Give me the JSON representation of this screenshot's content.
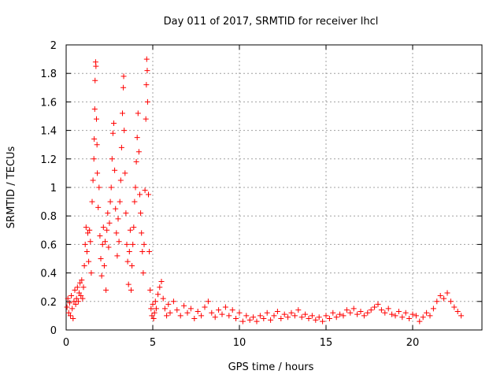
{
  "chart_data": {
    "type": "scatter",
    "title": "Day 011 of 2017, SRMTID for receiver lhcl",
    "xlabel": "GPS time / hours",
    "ylabel": "SRMTID / TECUs",
    "xlim": [
      0,
      24
    ],
    "ylim": [
      0,
      2
    ],
    "xticks": [
      0,
      5,
      10,
      15,
      20
    ],
    "xtick_labels": [
      "0",
      "5",
      "10",
      "15",
      "20"
    ],
    "yticks": [
      0,
      0.2,
      0.4,
      0.6,
      0.8,
      1,
      1.2,
      1.4,
      1.6,
      1.8,
      2
    ],
    "ytick_labels": [
      "0",
      "0.2",
      "0.4",
      "0.6",
      "0.8",
      "1",
      "1.2",
      "1.4",
      "1.6",
      "1.8",
      "2"
    ],
    "grid": true,
    "marker": "plus",
    "series": [
      {
        "name": "SRMTID",
        "color": "#ff0000",
        "points": [
          [
            0.05,
            0.16
          ],
          [
            0.1,
            0.22
          ],
          [
            0.15,
            0.12
          ],
          [
            0.2,
            0.19
          ],
          [
            0.25,
            0.1
          ],
          [
            0.3,
            0.24
          ],
          [
            0.35,
            0.15
          ],
          [
            0.4,
            0.08
          ],
          [
            0.45,
            0.2
          ],
          [
            0.5,
            0.28
          ],
          [
            0.55,
            0.18
          ],
          [
            0.6,
            0.22
          ],
          [
            0.65,
            0.3
          ],
          [
            0.7,
            0.2
          ],
          [
            0.75,
            0.26
          ],
          [
            0.8,
            0.33
          ],
          [
            0.85,
            0.24
          ],
          [
            0.9,
            0.35
          ],
          [
            0.95,
            0.22
          ],
          [
            1.0,
            0.3
          ],
          [
            1.05,
            0.45
          ],
          [
            1.1,
            0.6
          ],
          [
            1.15,
            0.72
          ],
          [
            1.2,
            0.55
          ],
          [
            1.25,
            0.68
          ],
          [
            1.3,
            0.48
          ],
          [
            1.35,
            0.7
          ],
          [
            1.4,
            0.62
          ],
          [
            1.45,
            0.4
          ],
          [
            1.5,
            0.9
          ],
          [
            1.55,
            1.05
          ],
          [
            1.6,
            1.2
          ],
          [
            1.62,
            1.34
          ],
          [
            1.65,
            1.55
          ],
          [
            1.67,
            1.75
          ],
          [
            1.7,
            1.88
          ],
          [
            1.72,
            1.85
          ],
          [
            1.75,
            1.48
          ],
          [
            1.78,
            1.3
          ],
          [
            1.8,
            1.1
          ],
          [
            1.85,
            0.86
          ],
          [
            1.9,
            1.0
          ],
          [
            1.95,
            0.66
          ],
          [
            2.0,
            0.5
          ],
          [
            2.05,
            0.38
          ],
          [
            2.1,
            0.6
          ],
          [
            2.15,
            0.72
          ],
          [
            2.2,
            0.45
          ],
          [
            2.25,
            0.62
          ],
          [
            2.3,
            0.28
          ],
          [
            2.35,
            0.7
          ],
          [
            2.4,
            0.82
          ],
          [
            2.45,
            0.58
          ],
          [
            2.5,
            0.75
          ],
          [
            2.55,
            0.9
          ],
          [
            2.6,
            1.0
          ],
          [
            2.65,
            1.2
          ],
          [
            2.7,
            1.38
          ],
          [
            2.75,
            1.45
          ],
          [
            2.8,
            1.12
          ],
          [
            2.85,
            0.85
          ],
          [
            2.9,
            0.68
          ],
          [
            2.95,
            0.52
          ],
          [
            3.0,
            0.78
          ],
          [
            3.05,
            0.62
          ],
          [
            3.1,
            0.9
          ],
          [
            3.15,
            1.05
          ],
          [
            3.2,
            1.28
          ],
          [
            3.25,
            1.52
          ],
          [
            3.3,
            1.7
          ],
          [
            3.32,
            1.78
          ],
          [
            3.35,
            1.4
          ],
          [
            3.4,
            1.1
          ],
          [
            3.45,
            0.82
          ],
          [
            3.5,
            0.6
          ],
          [
            3.55,
            0.48
          ],
          [
            3.6,
            0.32
          ],
          [
            3.65,
            0.55
          ],
          [
            3.7,
            0.7
          ],
          [
            3.75,
            0.28
          ],
          [
            3.8,
            0.45
          ],
          [
            3.85,
            0.6
          ],
          [
            3.9,
            0.72
          ],
          [
            3.95,
            0.9
          ],
          [
            4.0,
            1.0
          ],
          [
            4.05,
            1.18
          ],
          [
            4.1,
            1.35
          ],
          [
            4.15,
            1.52
          ],
          [
            4.2,
            1.25
          ],
          [
            4.25,
            0.95
          ],
          [
            4.3,
            0.82
          ],
          [
            4.35,
            0.68
          ],
          [
            4.4,
            0.55
          ],
          [
            4.45,
            0.4
          ],
          [
            4.5,
            0.6
          ],
          [
            4.55,
            0.98
          ],
          [
            4.6,
            1.48
          ],
          [
            4.63,
            1.72
          ],
          [
            4.65,
            1.9
          ],
          [
            4.68,
            1.82
          ],
          [
            4.7,
            1.6
          ],
          [
            4.75,
            0.95
          ],
          [
            4.8,
            0.55
          ],
          [
            4.85,
            0.28
          ],
          [
            4.9,
            0.15
          ],
          [
            4.95,
            0.1
          ],
          [
            5.0,
            0.18
          ],
          [
            5.05,
            0.08
          ],
          [
            5.1,
            0.12
          ],
          [
            5.15,
            0.2
          ],
          [
            5.2,
            0.15
          ],
          [
            5.3,
            0.25
          ],
          [
            5.4,
            0.3
          ],
          [
            5.5,
            0.34
          ],
          [
            5.6,
            0.22
          ],
          [
            5.7,
            0.15
          ],
          [
            5.8,
            0.1
          ],
          [
            5.9,
            0.18
          ],
          [
            6.0,
            0.12
          ],
          [
            6.2,
            0.2
          ],
          [
            6.4,
            0.14
          ],
          [
            6.6,
            0.1
          ],
          [
            6.8,
            0.17
          ],
          [
            7.0,
            0.12
          ],
          [
            7.2,
            0.15
          ],
          [
            7.4,
            0.08
          ],
          [
            7.6,
            0.13
          ],
          [
            7.8,
            0.1
          ],
          [
            8.0,
            0.16
          ],
          [
            8.2,
            0.2
          ],
          [
            8.4,
            0.12
          ],
          [
            8.6,
            0.09
          ],
          [
            8.8,
            0.14
          ],
          [
            9.0,
            0.11
          ],
          [
            9.2,
            0.16
          ],
          [
            9.4,
            0.1
          ],
          [
            9.6,
            0.14
          ],
          [
            9.8,
            0.08
          ],
          [
            10.0,
            0.12
          ],
          [
            10.2,
            0.06
          ],
          [
            10.4,
            0.1
          ],
          [
            10.6,
            0.07
          ],
          [
            10.8,
            0.09
          ],
          [
            11.0,
            0.06
          ],
          [
            11.2,
            0.1
          ],
          [
            11.4,
            0.08
          ],
          [
            11.6,
            0.12
          ],
          [
            11.8,
            0.07
          ],
          [
            12.0,
            0.1
          ],
          [
            12.2,
            0.13
          ],
          [
            12.4,
            0.08
          ],
          [
            12.6,
            0.11
          ],
          [
            12.8,
            0.09
          ],
          [
            13.0,
            0.12
          ],
          [
            13.2,
            0.1
          ],
          [
            13.4,
            0.14
          ],
          [
            13.6,
            0.09
          ],
          [
            13.8,
            0.11
          ],
          [
            14.0,
            0.08
          ],
          [
            14.2,
            0.1
          ],
          [
            14.4,
            0.07
          ],
          [
            14.6,
            0.09
          ],
          [
            14.8,
            0.06
          ],
          [
            15.0,
            0.1
          ],
          [
            15.2,
            0.08
          ],
          [
            15.4,
            0.12
          ],
          [
            15.6,
            0.09
          ],
          [
            15.8,
            0.11
          ],
          [
            16.0,
            0.1
          ],
          [
            16.2,
            0.14
          ],
          [
            16.4,
            0.12
          ],
          [
            16.6,
            0.15
          ],
          [
            16.8,
            0.11
          ],
          [
            17.0,
            0.13
          ],
          [
            17.2,
            0.1
          ],
          [
            17.4,
            0.12
          ],
          [
            17.6,
            0.14
          ],
          [
            17.8,
            0.16
          ],
          [
            18.0,
            0.18
          ],
          [
            18.2,
            0.14
          ],
          [
            18.4,
            0.12
          ],
          [
            18.6,
            0.15
          ],
          [
            18.8,
            0.11
          ],
          [
            19.0,
            0.1
          ],
          [
            19.2,
            0.13
          ],
          [
            19.4,
            0.09
          ],
          [
            19.6,
            0.12
          ],
          [
            19.8,
            0.08
          ],
          [
            20.0,
            0.11
          ],
          [
            20.2,
            0.1
          ],
          [
            20.4,
            0.06
          ],
          [
            20.6,
            0.09
          ],
          [
            20.8,
            0.12
          ],
          [
            21.0,
            0.1
          ],
          [
            21.2,
            0.15
          ],
          [
            21.4,
            0.2
          ],
          [
            21.6,
            0.24
          ],
          [
            21.8,
            0.22
          ],
          [
            22.0,
            0.26
          ],
          [
            22.2,
            0.2
          ],
          [
            22.4,
            0.16
          ],
          [
            22.6,
            0.13
          ],
          [
            22.8,
            0.1
          ]
        ]
      }
    ]
  }
}
